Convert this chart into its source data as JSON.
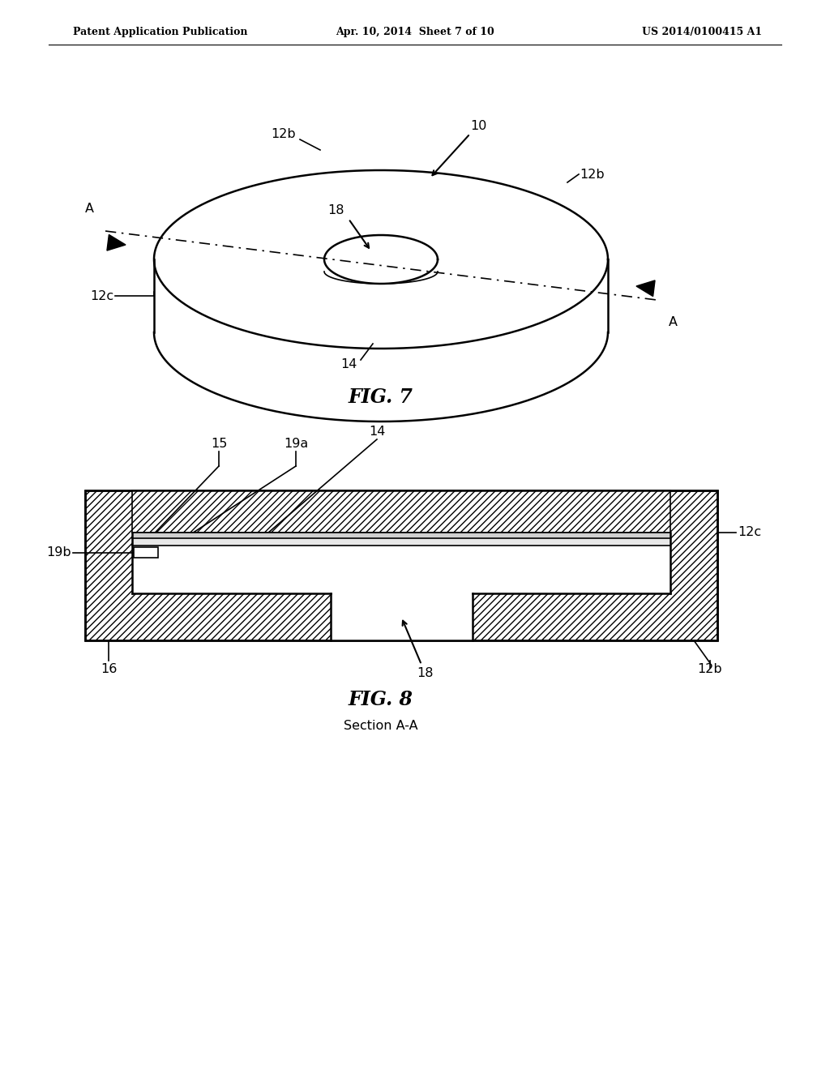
{
  "bg_color": "#ffffff",
  "header_left": "Patent Application Publication",
  "header_mid": "Apr. 10, 2014  Sheet 7 of 10",
  "header_right": "US 2014/0100415 A1",
  "fig7_title": "FIG. 7",
  "fig8_title": "FIG. 8",
  "fig8_subtitle": "Section A-A"
}
